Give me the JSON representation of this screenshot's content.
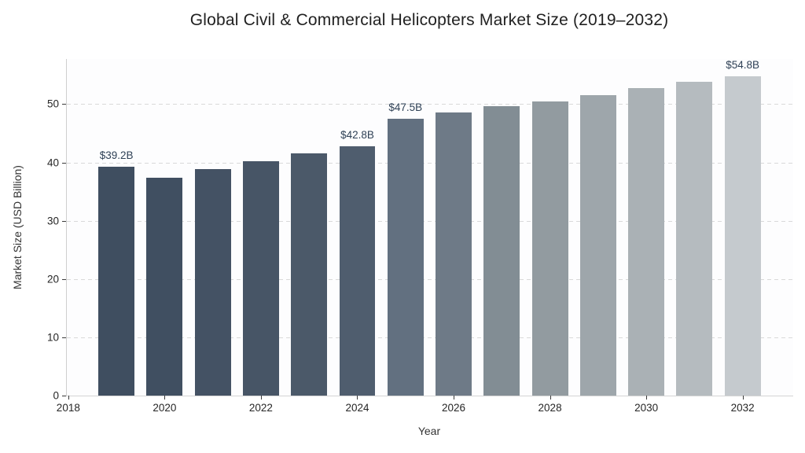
{
  "chart_data": {
    "type": "bar",
    "title": "Global Civil & Commercial Helicopters Market Size (2019–2032)",
    "xlabel": "Year",
    "ylabel": "Market Size (USD Billion)",
    "x": [
      2019,
      2020,
      2021,
      2022,
      2023,
      2024,
      2025,
      2026,
      2027,
      2028,
      2029,
      2030,
      2031,
      2032
    ],
    "values": [
      39.2,
      37.4,
      38.8,
      40.2,
      41.6,
      42.8,
      47.5,
      48.6,
      49.6,
      50.5,
      51.6,
      52.7,
      53.9,
      54.8
    ],
    "bar_labels": [
      "$39.2B",
      null,
      null,
      null,
      null,
      "$42.8B",
      "$47.5B",
      null,
      null,
      null,
      null,
      null,
      null,
      "$54.8B"
    ],
    "bar_colors": [
      "#3F4E60",
      "#404F61",
      "#445264",
      "#475566",
      "#4B5969",
      "#4F5D6E",
      "#627080",
      "#6E7A87",
      "#828D94",
      "#929BA0",
      "#9EA6AB",
      "#AAB1B5",
      "#B5BBBF",
      "#C5CACE"
    ],
    "xticks": [
      2018,
      2020,
      2022,
      2024,
      2026,
      2028,
      2030,
      2032
    ],
    "yticks": [
      0,
      10,
      20,
      30,
      40,
      50
    ],
    "xlim": [
      2017.97,
      2033.05
    ],
    "ylim": [
      0,
      57.75
    ],
    "bar_width_years": 0.75,
    "grid": "horizontal-dashed",
    "legend": "none",
    "colors": {
      "grid": "#d9d9d9",
      "bar_label": "#2F4156",
      "tick_label": "#262626",
      "axis_label": "#333333",
      "title": "#212121",
      "spine": "#cfcfcf",
      "plot_background": "#fdfdfe",
      "figure_background": "#ffffff"
    }
  }
}
